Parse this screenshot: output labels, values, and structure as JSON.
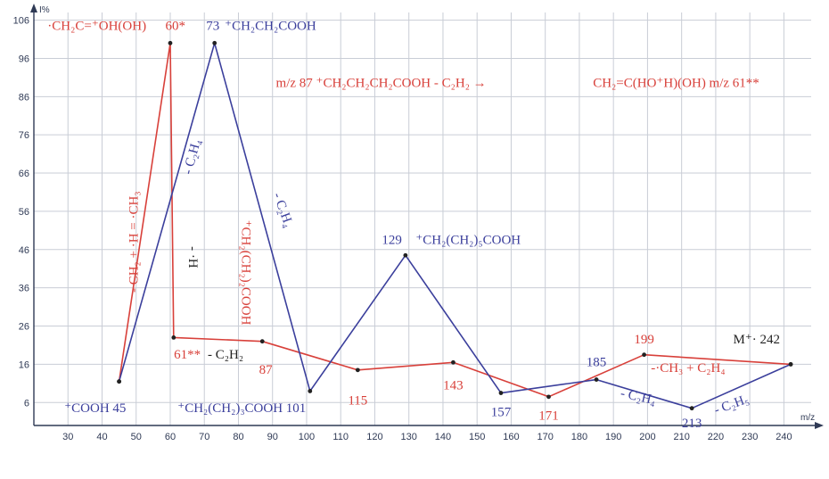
{
  "chart_data": {
    "type": "line",
    "xlabel": "m/z",
    "ylabel": "I%",
    "xlim": [
      20,
      248
    ],
    "ylim": [
      0,
      108
    ],
    "x_ticks": [
      30,
      40,
      50,
      60,
      70,
      80,
      90,
      100,
      110,
      120,
      130,
      140,
      150,
      160,
      170,
      180,
      190,
      200,
      210,
      220,
      230,
      240
    ],
    "y_ticks": [
      6,
      16,
      26,
      36,
      46,
      56,
      66,
      76,
      86,
      96,
      106
    ],
    "grid": true,
    "colors": {
      "red": "#d8403a",
      "blue": "#3b3f9c",
      "grid": "#c9cdd6",
      "axis": "#2f3a55"
    },
    "series": [
      {
        "color": "red",
        "x": [
          45,
          60,
          61,
          87,
          115,
          143,
          171,
          199,
          242
        ],
        "y": [
          11.5,
          100,
          23,
          22,
          14.5,
          16.5,
          7.5,
          18.5,
          16
        ]
      },
      {
        "color": "blue",
        "x": [
          45,
          73,
          101,
          129,
          157,
          185,
          213,
          242
        ],
        "y": [
          11.5,
          100,
          9,
          44.5,
          8.5,
          12,
          4.5,
          16
        ]
      }
    ],
    "annotations": [
      {
        "id": "a1",
        "color": "red",
        "text": "·CH₂C=⁺OH(OH)",
        "x": 24,
        "y": 103.5,
        "anchor": "start"
      },
      {
        "id": "a2",
        "color": "red",
        "text": "60*",
        "x": 61.5,
        "y": 103.5,
        "anchor": "middle"
      },
      {
        "id": "a3",
        "color": "blue",
        "text": "73",
        "x": 72.5,
        "y": 103.5,
        "anchor": "middle"
      },
      {
        "id": "a4",
        "color": "blue",
        "text": "⁺CH₂CH₂COOH",
        "x": 76,
        "y": 103.5,
        "anchor": "start"
      },
      {
        "id": "a5",
        "color": "red",
        "text": "m/z 87 ⁺CH₂CH₂CH₂COOH - C₂H₂ →",
        "x": 91,
        "y": 88.5,
        "anchor": "start"
      },
      {
        "id": "a6",
        "color": "red",
        "text": "CH₂=C(HO⁺H)(OH) m/z 61**",
        "x": 184,
        "y": 88.5,
        "anchor": "start"
      },
      {
        "id": "a7",
        "color": "blue",
        "text": "129",
        "x": 125,
        "y": 47.5,
        "anchor": "middle"
      },
      {
        "id": "a8",
        "color": "blue",
        "text": "⁺CH₂(CH₂)₅COOH",
        "x": 132,
        "y": 47.5,
        "anchor": "start"
      },
      {
        "id": "a9",
        "color": "red",
        "text": "61**",
        "x": 65,
        "y": 17.5,
        "anchor": "middle"
      },
      {
        "id": "a10",
        "color": "#222222",
        "text": "- C₂H₂",
        "x": 71,
        "y": 17.5,
        "anchor": "start"
      },
      {
        "id": "a11",
        "color": "red",
        "text": "87",
        "x": 88,
        "y": 13.5,
        "anchor": "middle"
      },
      {
        "id": "a12",
        "color": "blue",
        "text": "⁺COOH 45",
        "x": 38,
        "y": 3.5,
        "anchor": "middle"
      },
      {
        "id": "a13",
        "color": "blue",
        "text": "⁺CH₂(CH₂)₃COOH 101",
        "x": 81,
        "y": 3.5,
        "anchor": "middle"
      },
      {
        "id": "a14",
        "color": "red",
        "text": "115",
        "x": 115,
        "y": 5.5,
        "anchor": "middle"
      },
      {
        "id": "a15",
        "color": "red",
        "text": "143",
        "x": 143,
        "y": 9.5,
        "anchor": "middle"
      },
      {
        "id": "a16",
        "color": "blue",
        "text": "157",
        "x": 157,
        "y": 2.5,
        "anchor": "middle"
      },
      {
        "id": "a17",
        "color": "red",
        "text": "171",
        "x": 171,
        "y": 1.5,
        "anchor": "middle"
      },
      {
        "id": "a18",
        "color": "blue",
        "text": "185",
        "x": 185,
        "y": 15.5,
        "anchor": "middle"
      },
      {
        "id": "a19",
        "color": "red",
        "text": "199",
        "x": 199,
        "y": 21.5,
        "anchor": "middle"
      },
      {
        "id": "a20",
        "color": "#222222",
        "text": "M⁺· 242",
        "x": 232,
        "y": 21.5,
        "anchor": "middle"
      },
      {
        "id": "a21",
        "color": "red",
        "text": "-·CH₃ + C₂H₄",
        "x": 201,
        "y": 14,
        "anchor": "start"
      },
      {
        "id": "a22",
        "color": "blue",
        "text": "213",
        "x": 213,
        "y": -0.5,
        "anchor": "middle"
      },
      {
        "id": "a23",
        "color": "blue",
        "text": "- C₂H₄",
        "x": 197,
        "y": 6.5,
        "anchor": "middle",
        "rotate": 12
      },
      {
        "id": "a24",
        "color": "blue",
        "text": "- C₂H₅",
        "x": 225,
        "y": 4.5,
        "anchor": "middle",
        "rotate": -20
      },
      {
        "id": "a25",
        "color": "blue",
        "text": "- C₂H₄",
        "x": 67.5,
        "y": 70,
        "anchor": "middle",
        "rotate": -75
      },
      {
        "id": "a26",
        "color": "blue",
        "text": "- C₂H₄",
        "x": 92,
        "y": 56,
        "anchor": "middle",
        "rotate": 70
      },
      {
        "id": "a27",
        "color": "red",
        "text": "- CH₂ + ·H = ·CH₃",
        "x": 50.5,
        "y": 48,
        "anchor": "middle",
        "rotate": -90
      },
      {
        "id": "a28",
        "color": "#222222",
        "text": "- ·H",
        "x": 65.5,
        "y": 44,
        "anchor": "middle",
        "rotate": 90
      },
      {
        "id": "a29",
        "color": "red",
        "text": "⁺CH₂(CH₂)₂COOH",
        "x": 81,
        "y": 40,
        "anchor": "middle",
        "rotate": 90
      }
    ]
  }
}
